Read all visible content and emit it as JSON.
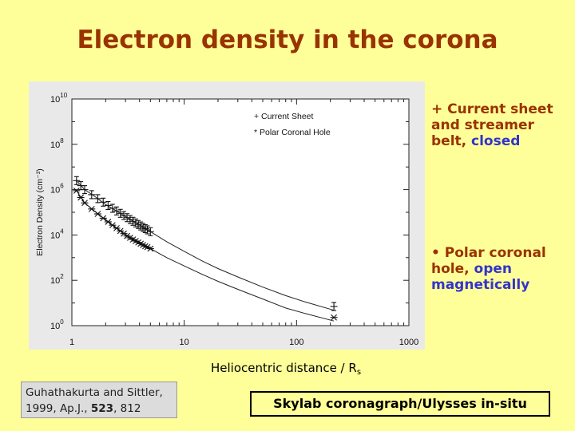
{
  "title": "Electron density in the corona",
  "notes": {
    "current_sheet": {
      "prefix": "+ Current sheet and streamer belt, ",
      "highlight": "closed"
    },
    "polar_hole": {
      "prefix": "• Polar coronal hole, ",
      "highlight": "open magnetically"
    }
  },
  "xlabel": {
    "text": "Heliocentric distance / R",
    "sub": "s"
  },
  "citation": {
    "line1": "Guhathakurta and Sittler,",
    "line2_pre": "1999, Ap.J., ",
    "volume": "523",
    "line2_post": ", 812"
  },
  "source": "Skylab coronagraph/Ulysses in-situ",
  "colors": {
    "background": "#ffff99",
    "title": "#993300",
    "highlight": "#3333cc"
  },
  "chart_data": {
    "type": "line",
    "xscale": "log",
    "yscale": "log",
    "xlim": [
      1,
      1000
    ],
    "ylim": [
      1,
      10000000000
    ],
    "x_ticks": [
      "1",
      "10",
      "100",
      "1000"
    ],
    "y_ticks": [
      {
        "base": "10",
        "exp": "0"
      },
      {
        "base": "10",
        "exp": "2"
      },
      {
        "base": "10",
        "exp": "4"
      },
      {
        "base": "10",
        "exp": "6"
      },
      {
        "base": "10",
        "exp": "8"
      },
      {
        "base": "10",
        "exp": "10"
      }
    ],
    "ylabel": "Electron Density",
    "ylabel_unit": "(cm⁻³)",
    "legend": [
      "+ Current Sheet",
      "* Polar Coronal Hole"
    ],
    "legend_position": "top-left",
    "series": [
      {
        "name": "Current Sheet",
        "marker": "+",
        "x": [
          1.1,
          1.2,
          1.3,
          1.5,
          1.7,
          1.9,
          2.1,
          2.3,
          2.5,
          2.7,
          2.9,
          3.1,
          3.3,
          3.5,
          3.7,
          3.9,
          4.1,
          4.3,
          4.5,
          4.7,
          5.0,
          215
        ],
        "y": [
          2500000,
          1500000,
          1000000,
          600000,
          400000,
          280000,
          200000,
          150000,
          115000,
          90000,
          72000,
          58000,
          48000,
          40000,
          34000,
          29000,
          25000,
          21500,
          19000,
          16800,
          14000,
          7
        ]
      },
      {
        "name": "Polar Coronal Hole",
        "marker": "*",
        "x": [
          1.1,
          1.2,
          1.3,
          1.5,
          1.7,
          1.9,
          2.1,
          2.3,
          2.5,
          2.7,
          2.9,
          3.1,
          3.3,
          3.5,
          3.7,
          3.9,
          4.1,
          4.3,
          4.5,
          4.7,
          5.0,
          215
        ],
        "y": [
          900000,
          450000,
          260000,
          140000,
          85000,
          55000,
          38000,
          27000,
          20000,
          15000,
          11500,
          9000,
          7500,
          6300,
          5400,
          4700,
          4100,
          3600,
          3200,
          2900,
          2500,
          2.3
        ]
      }
    ],
    "fit_curves": [
      {
        "name": "Current Sheet",
        "x": [
          1.1,
          1.3,
          1.6,
          2,
          2.5,
          3,
          4,
          5,
          7,
          10,
          15,
          20,
          30,
          50,
          80,
          120,
          215
        ],
        "y": [
          2500000,
          1000000,
          500000,
          220000,
          115000,
          65000,
          28000,
          14000,
          5000,
          1900,
          650,
          330,
          140,
          50,
          21,
          11,
          4.8
        ]
      },
      {
        "name": "Polar Coronal Hole",
        "x": [
          1.1,
          1.3,
          1.6,
          2,
          2.5,
          3,
          4,
          5,
          7,
          10,
          15,
          20,
          30,
          50,
          80,
          120,
          215
        ],
        "y": [
          900000,
          260000,
          110000,
          46000,
          20000,
          10500,
          4300,
          2500,
          1000,
          430,
          170,
          90,
          40,
          15,
          6,
          3.4,
          1.6
        ]
      }
    ]
  }
}
